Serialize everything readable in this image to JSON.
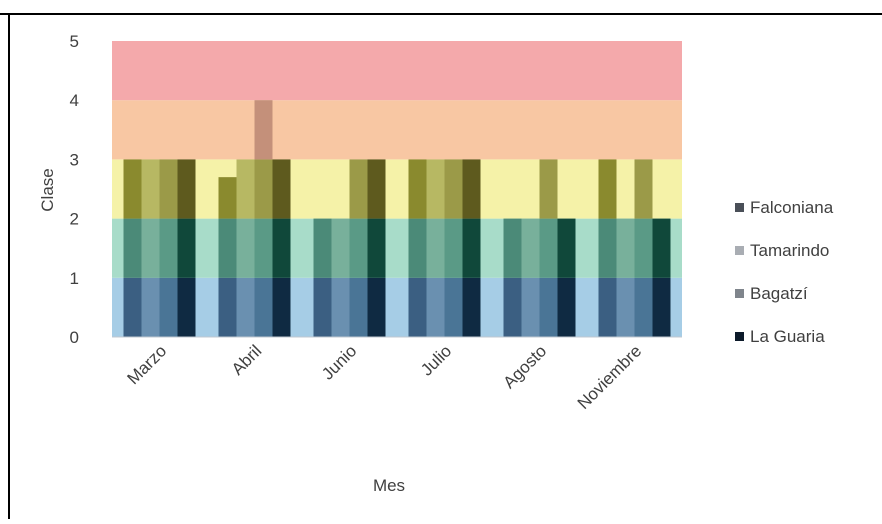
{
  "chart_data": {
    "type": "bar",
    "title": "",
    "xlabel": "Mes",
    "ylabel": "Clase",
    "ylim": [
      0,
      5
    ],
    "yticks": [
      0,
      1,
      2,
      3,
      4,
      5
    ],
    "categories": [
      "Marzo",
      "Abril",
      "Junio",
      "Julio",
      "Agosto",
      "Noviembre"
    ],
    "series": [
      {
        "name": "Falconiana",
        "values": [
          3,
          2.7,
          2,
          3,
          2,
          3
        ]
      },
      {
        "name": "Tamarindo",
        "values": [
          3,
          3,
          2,
          3,
          2,
          2
        ]
      },
      {
        "name": "Bagatzí",
        "values": [
          3,
          4,
          3,
          3,
          3,
          3
        ]
      },
      {
        "name": "La Guaria",
        "values": [
          3,
          3,
          3,
          3,
          2,
          2
        ]
      }
    ],
    "class_bands": [
      {
        "from": 0,
        "to": 1,
        "color": "#a6cde6"
      },
      {
        "from": 1,
        "to": 2,
        "color": "#a8dcc9"
      },
      {
        "from": 2,
        "to": 3,
        "color": "#f5f2a8"
      },
      {
        "from": 3,
        "to": 4,
        "color": "#f8c7a3"
      },
      {
        "from": 4,
        "to": 5,
        "color": "#f4a9ab"
      }
    ],
    "legend_position": "right",
    "grid": false
  }
}
